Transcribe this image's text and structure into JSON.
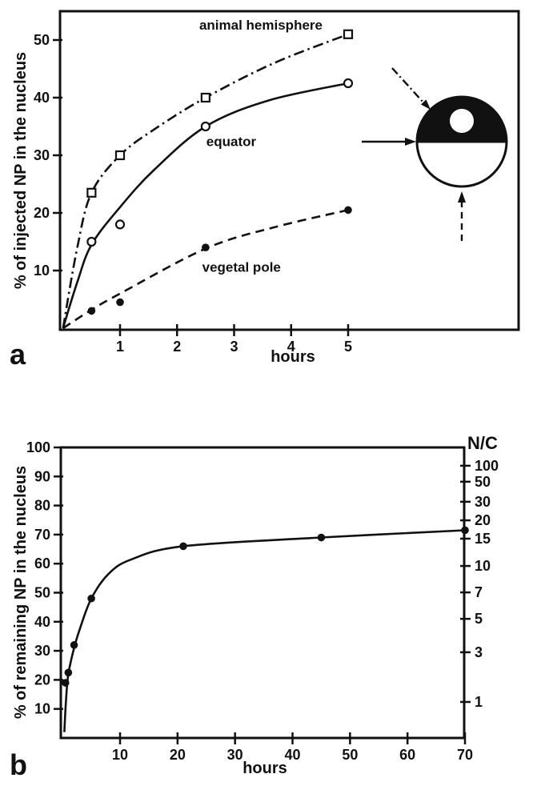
{
  "colors": {
    "ink": "#111111",
    "paper": "#ffffff"
  },
  "chart_data": [
    {
      "type": "line",
      "panel_label": "a",
      "xlabel": "hours",
      "ylabel": "% of injected NP in the nucleus",
      "xlim": [
        0,
        8
      ],
      "ylim": [
        0,
        55
      ],
      "x_ticks": [
        1,
        2,
        3,
        4,
        5
      ],
      "y_ticks": [
        10,
        20,
        30,
        40,
        50
      ],
      "grid": false,
      "series": [
        {
          "name": "animal hemisphere",
          "marker": "open-square",
          "line_style": "dashdot",
          "x": [
            0.5,
            1,
            2.5,
            5
          ],
          "y": [
            23.5,
            30,
            40,
            51
          ],
          "curve": [
            [
              0,
              0
            ],
            [
              0.25,
              14
            ],
            [
              0.5,
              23.5
            ],
            [
              1,
              30
            ],
            [
              1.6,
              34.5
            ],
            [
              2.5,
              40
            ],
            [
              3.7,
              46
            ],
            [
              5,
              51
            ]
          ],
          "label_x": 3.47,
          "label_y": 51.8
        },
        {
          "name": "equator",
          "marker": "open-circle",
          "line_style": "solid",
          "x": [
            0.5,
            1,
            2.5,
            5
          ],
          "y": [
            15,
            18,
            35,
            42.5
          ],
          "curve": [
            [
              0,
              0
            ],
            [
              0.25,
              8
            ],
            [
              0.5,
              14.5
            ],
            [
              1,
              21
            ],
            [
              1.6,
              27.5
            ],
            [
              2.5,
              35
            ],
            [
              3.6,
              39.5
            ],
            [
              5,
              42.5
            ]
          ],
          "label_x": 2.95,
          "label_y": 31.6
        },
        {
          "name": "vegetal pole",
          "marker": "filled-circle",
          "line_style": "dashed",
          "x": [
            0.5,
            1,
            2.5,
            5
          ],
          "y": [
            3,
            4.5,
            14,
            20.5
          ],
          "curve": [
            [
              0,
              0
            ],
            [
              0.5,
              3.2
            ],
            [
              1,
              6
            ],
            [
              2.5,
              13.8
            ],
            [
              3.7,
              17.5
            ],
            [
              5,
              20.5
            ]
          ],
          "label_x": 3.13,
          "label_y": 9.8
        }
      ],
      "inset": {
        "name": "egg-orientation-diagram",
        "regions": [
          "animal hemisphere",
          "equator",
          "vegetal pole"
        ]
      }
    },
    {
      "type": "line",
      "panel_label": "b",
      "xlabel": "hours",
      "ylabel": "% of remaining NP in the nucleus",
      "y2label": "N/C",
      "xlim": [
        0,
        70
      ],
      "ylim": [
        0,
        100
      ],
      "x_ticks": [
        10,
        20,
        30,
        40,
        50,
        60,
        70
      ],
      "y_ticks": [
        10,
        20,
        30,
        40,
        50,
        60,
        70,
        80,
        90,
        100
      ],
      "y2_ticks": [
        {
          "label": "100",
          "pos": 93.7
        },
        {
          "label": "50",
          "pos": 88.2
        },
        {
          "label": "30",
          "pos": 81.3
        },
        {
          "label": "20",
          "pos": 74.9
        },
        {
          "label": "15",
          "pos": 68.6
        },
        {
          "label": "10",
          "pos": 59.2
        },
        {
          "label": "7",
          "pos": 50.1
        },
        {
          "label": "5",
          "pos": 41.0
        },
        {
          "label": "3",
          "pos": 29.5
        },
        {
          "label": "1",
          "pos": 12.4
        }
      ],
      "grid": false,
      "series": [
        {
          "name": "remaining NP",
          "marker": "filled-circle",
          "line_style": "solid",
          "x": [
            0.5,
            1,
            2,
            5,
            21,
            45,
            70
          ],
          "y": [
            19,
            22.5,
            32,
            48,
            66,
            69,
            71.5
          ],
          "curve": [
            [
              0.3,
              2
            ],
            [
              0.6,
              13
            ],
            [
              1,
              22
            ],
            [
              2,
              31
            ],
            [
              3,
              37.5
            ],
            [
              5,
              48
            ],
            [
              8,
              56.5
            ],
            [
              12,
              61.5
            ],
            [
              21,
              66
            ],
            [
              45,
              69
            ],
            [
              70,
              71.5
            ]
          ]
        }
      ]
    }
  ]
}
